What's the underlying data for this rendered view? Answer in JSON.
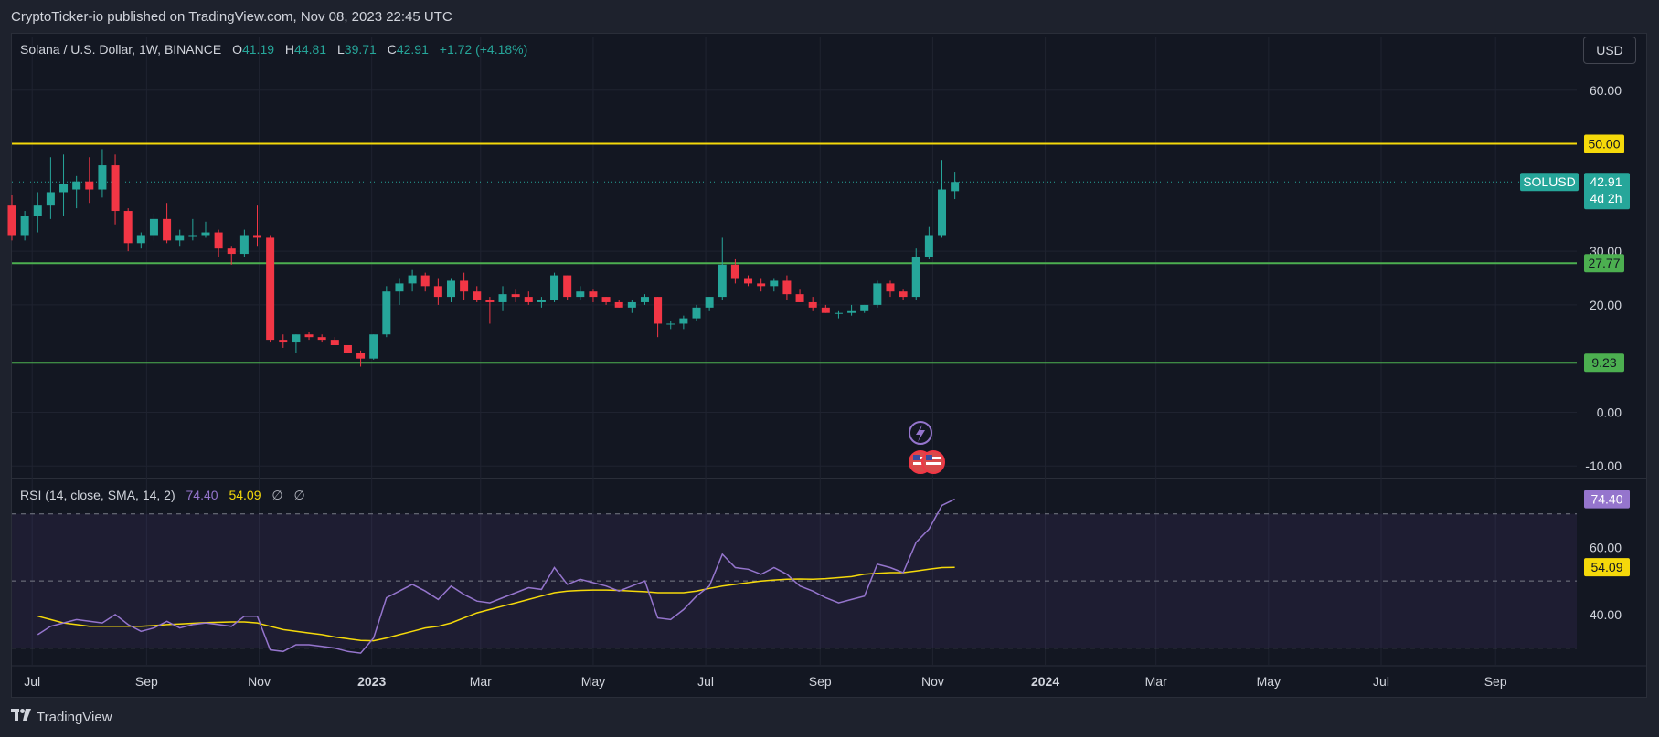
{
  "header": {
    "publish_line": "CryptoTicker-io published on TradingView.com, Nov 08, 2023 22:45 UTC"
  },
  "legend": {
    "symbol": "Solana / U.S. Dollar, 1W, BINANCE",
    "o_label": "O",
    "o_value": "41.19",
    "h_label": "H",
    "h_value": "44.81",
    "l_label": "L",
    "l_value": "39.71",
    "c_label": "C",
    "c_value": "42.91",
    "change": "+1.72 (+4.18%)"
  },
  "rsi_legend": {
    "name": "RSI (14, close, SMA, 14, 2)",
    "rsi_value": "74.40",
    "sma_value": "54.09",
    "empty1": "∅",
    "empty2": "∅"
  },
  "currency_button": "USD",
  "footer": {
    "brand": "TradingView"
  },
  "colors": {
    "up": "#26a69a",
    "down": "#f23645",
    "resistance": "#f5d90a",
    "support": "#4caf50",
    "rsi": "#9575cd",
    "rsi_sma": "#f5d90a",
    "background": "#131722"
  },
  "chart_data": [
    {
      "type": "candlestick",
      "symbol_badge": "SOLUSD",
      "current_price": "42.91",
      "countdown": "4d 2h",
      "ylim": [
        -12,
        70
      ],
      "y_ticks": [
        "60.00",
        "30.00",
        "20.00",
        "0.00",
        "-10.00"
      ],
      "y_tick_values": [
        60,
        30,
        20,
        0,
        -10
      ],
      "x_ticks": [
        "Jul",
        "Sep",
        "Nov",
        "2023",
        "Mar",
        "May",
        "Jul",
        "Sep",
        "Nov",
        "2024",
        "Mar",
        "May",
        "Jul",
        "Sep"
      ],
      "x_tick_dates": [
        "2022-07-01",
        "2022-09-01",
        "2022-11-01",
        "2023-01-01",
        "2023-03-01",
        "2023-05-01",
        "2023-07-01",
        "2023-09-01",
        "2023-11-01",
        "2024-01-01",
        "2024-03-01",
        "2024-05-01",
        "2024-07-01",
        "2024-09-01"
      ],
      "x_range": [
        "2022-06-20",
        "2024-10-15"
      ],
      "horizontal_lines": [
        {
          "value": 50.0,
          "label": "50.00",
          "color": "#f5d90a"
        },
        {
          "value": 27.77,
          "label": "27.77",
          "color": "#4caf50"
        },
        {
          "value": 9.23,
          "label": "9.23",
          "color": "#4caf50"
        }
      ],
      "candles": [
        [
          "2022-06-20",
          38.5,
          40.5,
          32.0,
          33.0
        ],
        [
          "2022-06-27",
          33.0,
          37.5,
          32.0,
          36.5
        ],
        [
          "2022-07-04",
          36.5,
          41.0,
          33.5,
          38.5
        ],
        [
          "2022-07-11",
          38.5,
          47.5,
          36.0,
          41.0
        ],
        [
          "2022-07-18",
          41.0,
          48.0,
          36.5,
          42.5
        ],
        [
          "2022-07-25",
          41.5,
          44.0,
          38.0,
          43.0
        ],
        [
          "2022-08-01",
          43.0,
          47.5,
          39.0,
          41.5
        ],
        [
          "2022-08-08",
          41.5,
          49.0,
          40.0,
          46.0
        ],
        [
          "2022-08-15",
          46.0,
          48.0,
          35.0,
          37.5
        ],
        [
          "2022-08-22",
          37.5,
          38.0,
          30.0,
          31.5
        ],
        [
          "2022-08-29",
          31.5,
          33.5,
          30.5,
          33.0
        ],
        [
          "2022-09-05",
          33.0,
          37.0,
          32.0,
          36.0
        ],
        [
          "2022-09-12",
          36.0,
          39.0,
          31.5,
          32.0
        ],
        [
          "2022-09-19",
          32.0,
          34.0,
          31.0,
          33.0
        ],
        [
          "2022-09-26",
          33.0,
          36.0,
          32.0,
          33.0
        ],
        [
          "2022-10-03",
          33.0,
          35.5,
          32.5,
          33.5
        ],
        [
          "2022-10-10",
          33.5,
          34.0,
          29.0,
          30.5
        ],
        [
          "2022-10-17",
          30.5,
          31.0,
          27.5,
          29.5
        ],
        [
          "2022-10-24",
          29.5,
          34.0,
          29.0,
          33.0
        ],
        [
          "2022-10-31",
          33.0,
          38.5,
          31.0,
          32.5
        ],
        [
          "2022-11-07",
          32.5,
          33.0,
          13.0,
          13.5
        ],
        [
          "2022-11-14",
          13.5,
          14.5,
          12.0,
          13.0
        ],
        [
          "2022-11-21",
          13.0,
          14.5,
          11.0,
          14.5
        ],
        [
          "2022-11-28",
          14.5,
          15.0,
          13.5,
          14.0
        ],
        [
          "2022-12-05",
          14.0,
          14.5,
          13.0,
          13.5
        ],
        [
          "2022-12-12",
          13.5,
          14.0,
          12.5,
          12.5
        ],
        [
          "2022-12-19",
          12.5,
          12.5,
          11.0,
          11.0
        ],
        [
          "2022-12-26",
          11.0,
          11.5,
          8.5,
          10.0
        ],
        [
          "2023-01-02",
          10.0,
          14.5,
          9.8,
          14.5
        ],
        [
          "2023-01-09",
          14.5,
          23.5,
          14.0,
          22.5
        ],
        [
          "2023-01-16",
          22.5,
          25.0,
          20.0,
          24.0
        ],
        [
          "2023-01-23",
          24.0,
          26.5,
          22.5,
          25.5
        ],
        [
          "2023-01-30",
          25.5,
          26.0,
          22.5,
          23.5
        ],
        [
          "2023-02-06",
          23.5,
          25.0,
          20.0,
          21.5
        ],
        [
          "2023-02-13",
          21.5,
          25.0,
          20.5,
          24.5
        ],
        [
          "2023-02-20",
          24.5,
          26.0,
          21.0,
          22.5
        ],
        [
          "2023-02-27",
          22.5,
          23.5,
          20.5,
          21.0
        ],
        [
          "2023-03-06",
          21.0,
          21.5,
          16.5,
          20.5
        ],
        [
          "2023-03-13",
          20.5,
          23.5,
          19.0,
          22.0
        ],
        [
          "2023-03-20",
          22.0,
          23.0,
          20.5,
          21.5
        ],
        [
          "2023-03-27",
          21.5,
          22.5,
          20.0,
          20.5
        ],
        [
          "2023-04-03",
          20.5,
          21.5,
          19.5,
          21.0
        ],
        [
          "2023-04-10",
          21.0,
          26.0,
          20.5,
          25.5
        ],
        [
          "2023-04-17",
          25.5,
          25.5,
          21.0,
          21.5
        ],
        [
          "2023-04-24",
          21.5,
          23.5,
          21.0,
          22.5
        ],
        [
          "2023-05-01",
          22.5,
          23.0,
          20.5,
          21.5
        ],
        [
          "2023-05-08",
          21.5,
          21.5,
          20.0,
          20.5
        ],
        [
          "2023-05-15",
          20.5,
          21.0,
          19.5,
          19.5
        ],
        [
          "2023-05-22",
          19.5,
          21.0,
          18.5,
          20.5
        ],
        [
          "2023-05-29",
          20.5,
          22.0,
          20.0,
          21.5
        ],
        [
          "2023-06-05",
          21.5,
          21.5,
          14.0,
          16.5
        ],
        [
          "2023-06-12",
          16.5,
          17.0,
          15.5,
          16.5
        ],
        [
          "2023-06-19",
          16.5,
          18.0,
          15.5,
          17.5
        ],
        [
          "2023-06-26",
          17.5,
          20.0,
          17.0,
          19.5
        ],
        [
          "2023-07-03",
          19.5,
          21.5,
          19.0,
          21.5
        ],
        [
          "2023-07-10",
          21.5,
          32.5,
          21.0,
          27.5
        ],
        [
          "2023-07-17",
          27.5,
          28.5,
          24.0,
          25.0
        ],
        [
          "2023-07-24",
          25.0,
          25.5,
          23.5,
          24.0
        ],
        [
          "2023-07-31",
          24.0,
          25.0,
          22.5,
          23.5
        ],
        [
          "2023-08-07",
          23.5,
          25.0,
          22.5,
          24.5
        ],
        [
          "2023-08-14",
          24.5,
          25.5,
          21.0,
          22.0
        ],
        [
          "2023-08-21",
          22.0,
          23.0,
          20.5,
          20.5
        ],
        [
          "2023-08-28",
          20.5,
          21.5,
          19.0,
          19.5
        ],
        [
          "2023-09-04",
          19.5,
          20.0,
          18.5,
          18.5
        ],
        [
          "2023-09-11",
          18.5,
          19.0,
          17.5,
          18.5
        ],
        [
          "2023-09-18",
          18.5,
          20.0,
          18.0,
          19.0
        ],
        [
          "2023-09-25",
          19.0,
          20.0,
          18.5,
          20.0
        ],
        [
          "2023-10-02",
          20.0,
          24.5,
          19.5,
          24.0
        ],
        [
          "2023-10-09",
          24.0,
          24.5,
          21.5,
          22.5
        ],
        [
          "2023-10-16",
          22.5,
          23.0,
          21.0,
          21.5
        ],
        [
          "2023-10-23",
          21.5,
          30.5,
          21.0,
          29.0
        ],
        [
          "2023-10-30",
          29.0,
          34.5,
          28.5,
          33.0
        ],
        [
          "2023-11-06",
          33.0,
          47.0,
          32.5,
          41.5
        ],
        [
          "2023-11-13",
          41.19,
          44.81,
          39.71,
          42.91
        ]
      ]
    },
    {
      "type": "line",
      "title": "RSI (14, close, SMA, 14, 2)",
      "ylim": [
        25,
        80
      ],
      "y_ticks": [
        "60.00",
        "40.00"
      ],
      "y_tick_values": [
        60,
        40
      ],
      "bands": [
        70,
        50,
        30
      ],
      "badges": [
        {
          "value": 74.4,
          "label": "74.40",
          "color": "#9575cd"
        },
        {
          "value": 54.09,
          "label": "54.09",
          "color": "#f5d90a"
        }
      ],
      "series": [
        {
          "name": "RSI",
          "values": [
            34.0,
            36.5,
            37.5,
            38.5,
            38.0,
            37.5,
            40.0,
            37.0,
            35.0,
            36.0,
            38.0,
            36.0,
            37.0,
            37.5,
            37.0,
            36.5,
            39.5,
            39.5,
            29.5,
            29.0,
            31.0,
            31.0,
            30.5,
            30.0,
            29.0,
            28.5,
            33.0,
            45.0,
            47.0,
            49.0,
            47.0,
            44.5,
            48.5,
            46.0,
            44.0,
            43.5,
            45.0,
            46.5,
            48.0,
            47.5,
            54.0,
            49.0,
            50.5,
            49.5,
            48.5,
            47.0,
            48.5,
            50.0,
            39.0,
            38.5,
            41.5,
            45.5,
            48.5,
            58.0,
            54.0,
            53.5,
            52.0,
            54.0,
            52.0,
            48.5,
            47.0,
            45.0,
            43.5,
            44.5,
            45.5,
            55.0,
            54.0,
            52.5,
            61.5,
            65.5,
            72.5,
            74.4
          ]
        },
        {
          "name": "SMA",
          "values": [
            39.5,
            38.5,
            37.5,
            37.0,
            36.5,
            36.5,
            36.5,
            36.5,
            36.5,
            36.7,
            37.0,
            37.2,
            37.4,
            37.6,
            37.7,
            37.8,
            37.8,
            37.5,
            36.5,
            35.5,
            35.0,
            34.5,
            34.0,
            33.3,
            32.8,
            32.3,
            32.2,
            33.0,
            34.0,
            35.0,
            36.0,
            36.5,
            37.5,
            39.0,
            40.5,
            41.5,
            42.5,
            43.5,
            44.5,
            45.5,
            46.5,
            47.0,
            47.2,
            47.3,
            47.3,
            47.2,
            47.0,
            46.8,
            46.5,
            46.5,
            46.5,
            47.0,
            47.8,
            48.5,
            49.0,
            49.5,
            50.0,
            50.3,
            50.5,
            50.6,
            50.5,
            50.7,
            51.0,
            51.3,
            52.0,
            52.3,
            52.5,
            52.5,
            53.0,
            53.5,
            54.0,
            54.09
          ]
        }
      ]
    }
  ]
}
